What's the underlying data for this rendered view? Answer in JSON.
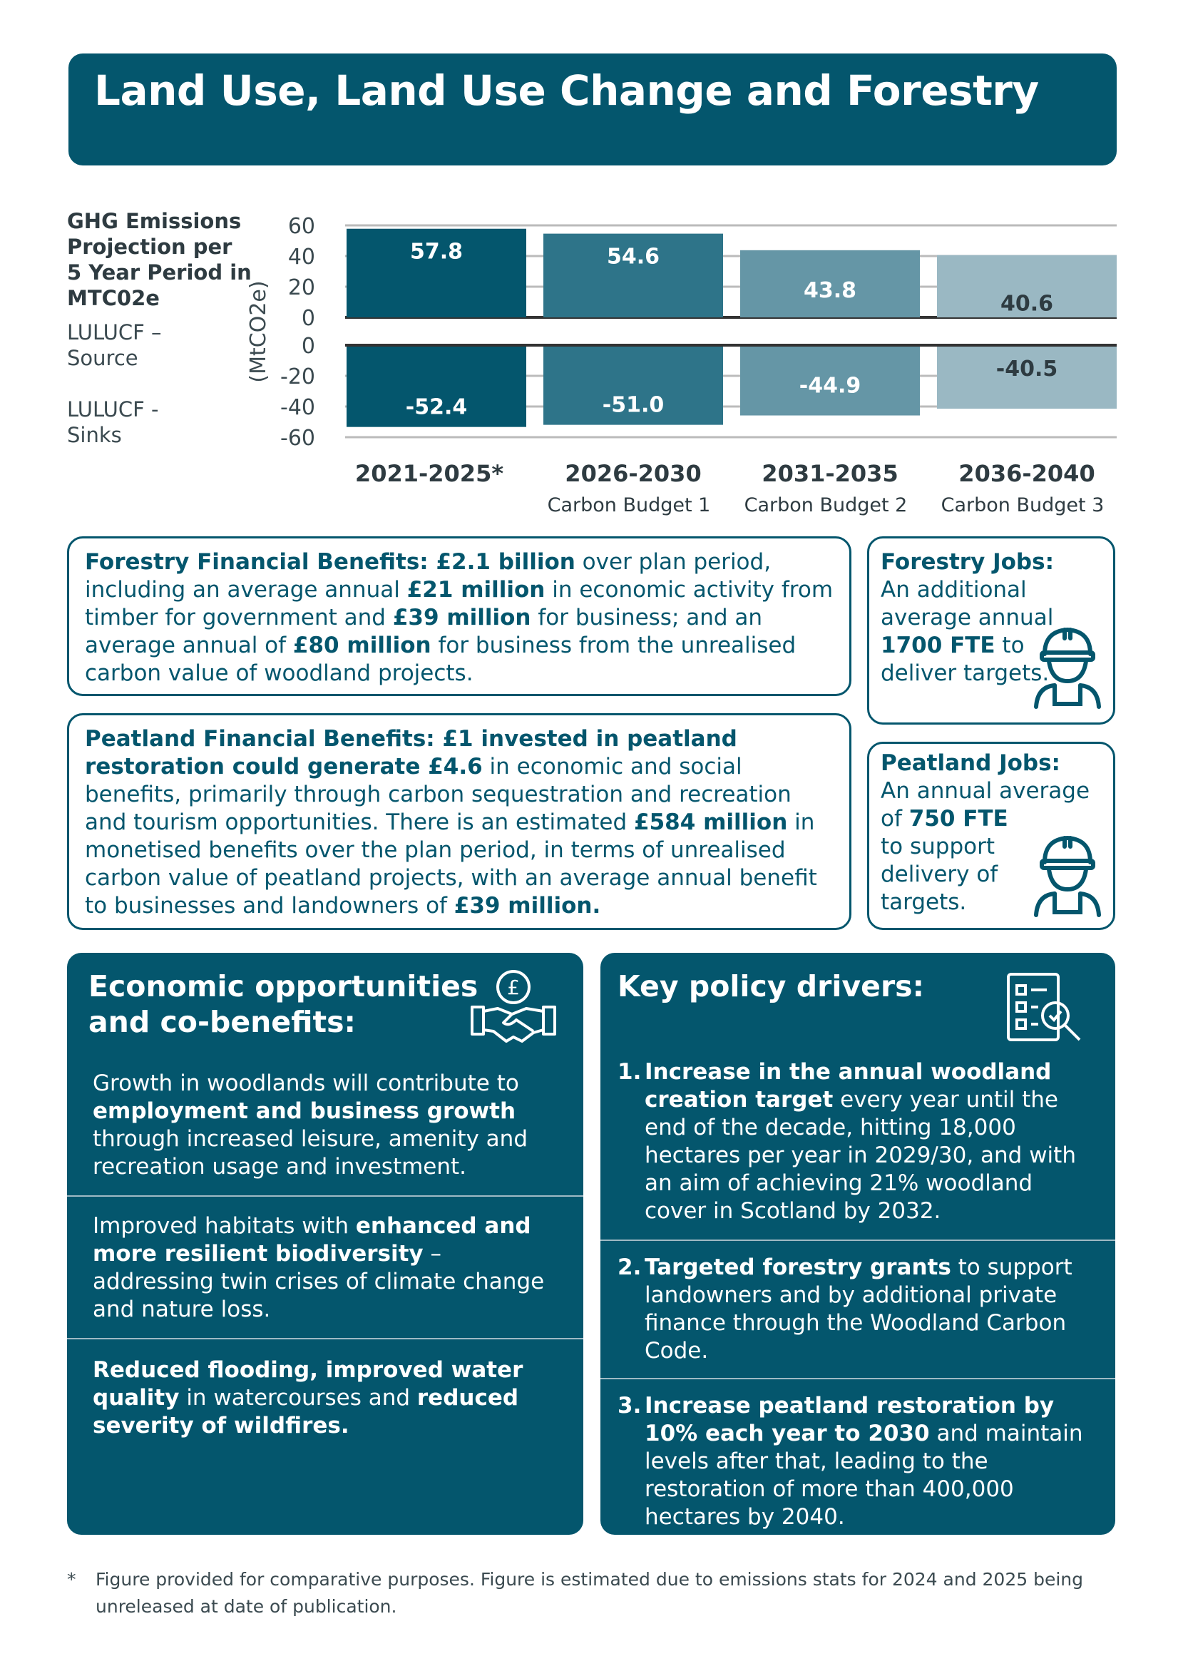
{
  "header": {
    "title": "Land Use, Land Use Change and Forestry"
  },
  "chart_data": {
    "type": "bar",
    "title": "GHG Emissions Projection per 5 Year Period in MTC02e",
    "ylabel": "(MtCO2e)",
    "categories": [
      "2021-2025*",
      "2026-2030",
      "2031-2035",
      "2036-2040"
    ],
    "category_sublabels": [
      "",
      "Carbon Budget 1",
      "Carbon Budget 2",
      "Carbon Budget 3"
    ],
    "series": [
      {
        "name": "LULUCF – Source",
        "values": [
          57.8,
          54.6,
          43.8,
          40.6
        ],
        "labels": [
          "57.8",
          "54.6",
          "43.8",
          "40.6"
        ],
        "ylim": [
          0,
          60
        ],
        "ticks": [
          "60",
          "40",
          "20",
          "0"
        ]
      },
      {
        "name": "LULUCF - Sinks",
        "values": [
          -52.4,
          -51.0,
          -44.9,
          -40.5
        ],
        "labels": [
          "-52.4",
          "-51.0",
          "-44.9",
          "-40.5"
        ],
        "ylim": [
          -60,
          0
        ],
        "ticks": [
          "0",
          "-20",
          "-40",
          "-60"
        ]
      }
    ],
    "bar_colors": [
      "#04566d",
      "#2e7489",
      "#6596a6",
      "#9ab8c3"
    ],
    "grid": true
  },
  "forestry_financial": {
    "title": "Forestry Financial Benefits: ",
    "amount": "£2.1 billion",
    "t1": " over plan period, including an average annual ",
    "b1": "£21 million",
    "t2": " in economic activity from timber for government and ",
    "b2": "£39 million",
    "t3": " for business; and an average annual of ",
    "b3": "£80 million",
    "t4": " for business from the unrealised carbon value of woodland projects."
  },
  "forestry_jobs": {
    "title": "Forestry Jobs:",
    "t1": "An additional average annual ",
    "b1": "1700 FTE",
    "t2": " to deliver targets."
  },
  "peatland_financial": {
    "title": "Peatland Financial Benefits: £1 invested in peatland restoration could generate £4.6",
    "t1": " in economic and social benefits, primarily through carbon sequestration and recreation and tourism opportunities. There is an estimated ",
    "b1": "£584 million",
    "t2": " in monetised benefits over the plan period, in terms of unrealised carbon value of peatland projects, with an average annual benefit to businesses and landowners of ",
    "b2": "£39 million."
  },
  "peatland_jobs": {
    "title": "Peatland Jobs:",
    "t1": "An annual average of ",
    "b1": "750 FTE",
    "t2": " to support delivery of targets."
  },
  "economic": {
    "heading": "Economic opportunities and co-benefits:",
    "s1": {
      "t1": "Growth in woodlands will contribute to ",
      "b1": "employment and business growth",
      "t2": " through increased leisure, amenity and recreation usage and investment."
    },
    "s2": {
      "t1": "Improved habitats with ",
      "b1": "enhanced and more resilient biodiversity",
      "t2": " – addressing twin crises of climate change and nature loss."
    },
    "s3": {
      "b1": "Reduced flooding, improved water quality",
      "t1": " in watercourses and ",
      "b2": "reduced severity of wildfires."
    }
  },
  "policy": {
    "heading": "Key policy drivers:",
    "items": [
      {
        "n": "1.",
        "b": "Increase in the annual woodland creation target",
        "t": " every year until the end of the decade, hitting 18,000 hectares per year in 2029/30, and with an aim of achieving 21% woodland cover in Scotland by 2032."
      },
      {
        "n": "2.",
        "b": "Targeted forestry grants",
        "t": " to support landowners and by additional private finance through the Woodland Carbon Code."
      },
      {
        "n": "3.",
        "b": "Increase peatland restoration by 10% each year to 2030",
        "t": " and maintain levels after that, leading to the restoration of more than 400,000 hectares by 2040."
      }
    ]
  },
  "footnote": {
    "mark": "*",
    "text": "Figure provided for comparative purposes. Figure is estimated due to emissions stats for 2024 and 2025 being unreleased at date of publication."
  }
}
